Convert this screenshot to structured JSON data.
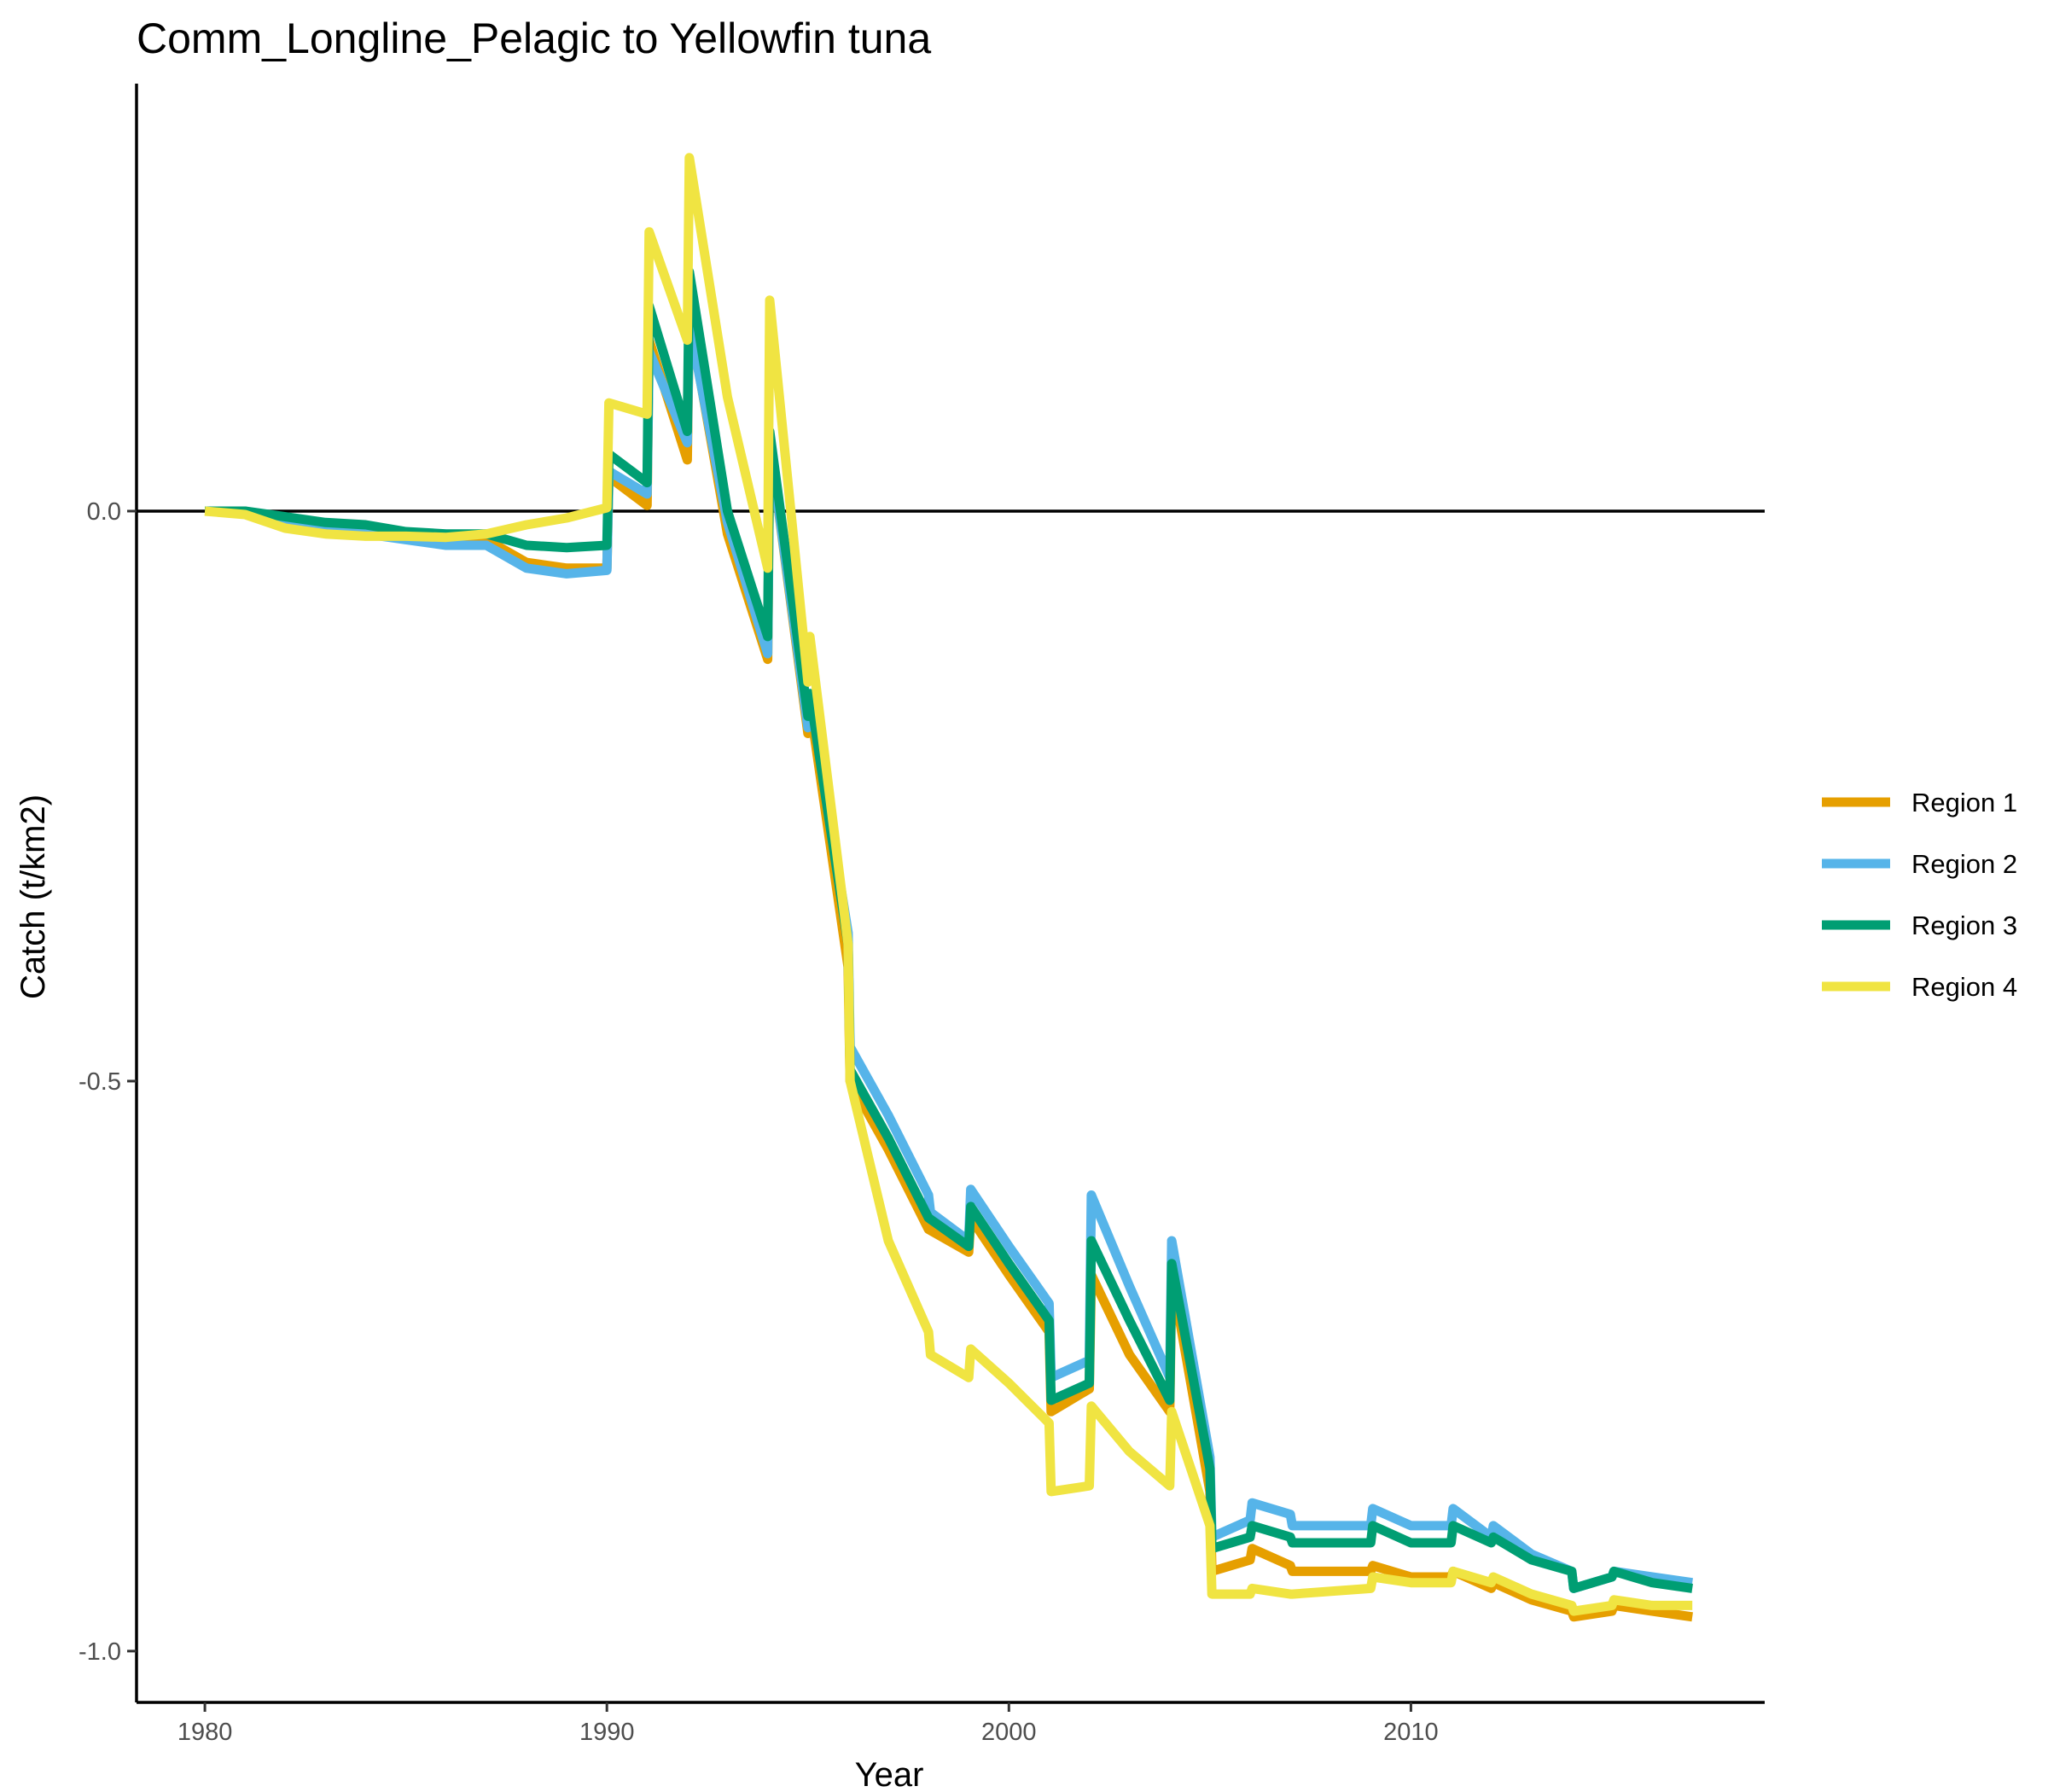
{
  "chart_data": {
    "type": "line",
    "title": "Comm_Longline_Pelagic to Yellowfin tuna",
    "xlabel": "Year",
    "ylabel": "Catch (t/km2)",
    "xlim": [
      1978.3,
      2018.8
    ],
    "ylim": [
      -1.045,
      0.375
    ],
    "x_ticks": [
      1980,
      1990,
      2000,
      2010
    ],
    "x_tick_labels": [
      "1980",
      "1990",
      "2000",
      "2010"
    ],
    "y_ticks": [
      0.0,
      -0.5,
      -1.0
    ],
    "y_tick_labels": [
      "0.0",
      "-0.5",
      "-1.0"
    ],
    "reference_line_y": 0,
    "grid": false,
    "legend_position": "right",
    "series": [
      {
        "name": "Region 1",
        "color": "#E69F00",
        "points": [
          [
            1980,
            0
          ],
          [
            1981,
            0
          ],
          [
            1982,
            -0.01
          ],
          [
            1983,
            -0.015
          ],
          [
            1984,
            -0.02
          ],
          [
            1985,
            -0.022
          ],
          [
            1986,
            -0.023
          ],
          [
            1987,
            -0.025
          ],
          [
            1988,
            -0.045
          ],
          [
            1989,
            -0.05
          ],
          [
            1990,
            -0.05
          ],
          [
            1990.05,
            0.03
          ],
          [
            1991,
            0.005
          ],
          [
            1991.05,
            0.15
          ],
          [
            1992,
            0.045
          ],
          [
            1992.05,
            0.17
          ],
          [
            1993,
            -0.02
          ],
          [
            1994,
            -0.13
          ],
          [
            1994.05,
            0.06
          ],
          [
            1995,
            -0.195
          ],
          [
            1995.05,
            -0.17
          ],
          [
            1996,
            -0.4
          ],
          [
            1996.05,
            -0.5
          ],
          [
            1997,
            -0.56
          ],
          [
            1998,
            -0.63
          ],
          [
            1999,
            -0.65
          ],
          [
            1999.05,
            -0.62
          ],
          [
            2000,
            -0.67
          ],
          [
            2001,
            -0.72
          ],
          [
            2001.05,
            -0.79
          ],
          [
            2002,
            -0.77
          ],
          [
            2002.05,
            -0.67
          ],
          [
            2003,
            -0.74
          ],
          [
            2004,
            -0.79
          ],
          [
            2004.05,
            -0.67
          ],
          [
            2005,
            -0.86
          ],
          [
            2005.05,
            -0.93
          ],
          [
            2006,
            -0.92
          ],
          [
            2006.05,
            -0.91
          ],
          [
            2007,
            -0.925
          ],
          [
            2007.05,
            -0.93
          ],
          [
            2009,
            -0.93
          ],
          [
            2009.05,
            -0.925
          ],
          [
            2010,
            -0.935
          ],
          [
            2011,
            -0.935
          ],
          [
            2011.05,
            -0.93
          ],
          [
            2012,
            -0.945
          ],
          [
            2012.05,
            -0.94
          ],
          [
            2013,
            -0.955
          ],
          [
            2014,
            -0.965
          ],
          [
            2014.05,
            -0.97
          ],
          [
            2015,
            -0.965
          ],
          [
            2015.05,
            -0.96
          ],
          [
            2016,
            -0.965
          ],
          [
            2017,
            -0.97
          ]
        ]
      },
      {
        "name": "Region 2",
        "color": "#56B4E9",
        "points": [
          [
            1980,
            0
          ],
          [
            1981,
            0
          ],
          [
            1982,
            -0.01
          ],
          [
            1983,
            -0.015
          ],
          [
            1984,
            -0.02
          ],
          [
            1985,
            -0.025
          ],
          [
            1986,
            -0.03
          ],
          [
            1987,
            -0.03
          ],
          [
            1988,
            -0.05
          ],
          [
            1989,
            -0.055
          ],
          [
            1990,
            -0.052
          ],
          [
            1990.05,
            0.035
          ],
          [
            1991,
            0.015
          ],
          [
            1991.05,
            0.14
          ],
          [
            1992,
            0.06
          ],
          [
            1992.05,
            0.165
          ],
          [
            1993,
            -0.01
          ],
          [
            1994,
            -0.125
          ],
          [
            1994.05,
            0.06
          ],
          [
            1995,
            -0.19
          ],
          [
            1995.05,
            -0.16
          ],
          [
            1996,
            -0.37
          ],
          [
            1996.05,
            -0.47
          ],
          [
            1997,
            -0.53
          ],
          [
            1998,
            -0.6
          ],
          [
            1998.05,
            -0.615
          ],
          [
            1999,
            -0.64
          ],
          [
            1999.05,
            -0.595
          ],
          [
            2000,
            -0.645
          ],
          [
            2001,
            -0.695
          ],
          [
            2001.05,
            -0.76
          ],
          [
            2002,
            -0.745
          ],
          [
            2002.05,
            -0.6
          ],
          [
            2003,
            -0.68
          ],
          [
            2004,
            -0.76
          ],
          [
            2004.05,
            -0.64
          ],
          [
            2005,
            -0.83
          ],
          [
            2005.05,
            -0.9
          ],
          [
            2006,
            -0.885
          ],
          [
            2006.05,
            -0.87
          ],
          [
            2007,
            -0.88
          ],
          [
            2007.05,
            -0.89
          ],
          [
            2009,
            -0.89
          ],
          [
            2009.05,
            -0.875
          ],
          [
            2010,
            -0.89
          ],
          [
            2011,
            -0.89
          ],
          [
            2011.05,
            -0.875
          ],
          [
            2012,
            -0.9
          ],
          [
            2012.05,
            -0.89
          ],
          [
            2013,
            -0.915
          ],
          [
            2014,
            -0.93
          ],
          [
            2014.05,
            -0.945
          ],
          [
            2015,
            -0.935
          ],
          [
            2015.05,
            -0.93
          ],
          [
            2016,
            -0.935
          ],
          [
            2017,
            -0.94
          ]
        ]
      },
      {
        "name": "Region 3",
        "color": "#009E73",
        "points": [
          [
            1980,
            0
          ],
          [
            1981,
            0
          ],
          [
            1982,
            -0.005
          ],
          [
            1983,
            -0.01
          ],
          [
            1984,
            -0.012
          ],
          [
            1985,
            -0.018
          ],
          [
            1986,
            -0.02
          ],
          [
            1987,
            -0.02
          ],
          [
            1988,
            -0.03
          ],
          [
            1989,
            -0.032
          ],
          [
            1990,
            -0.03
          ],
          [
            1990.05,
            0.05
          ],
          [
            1991,
            0.025
          ],
          [
            1991.05,
            0.18
          ],
          [
            1992,
            0.07
          ],
          [
            1992.05,
            0.21
          ],
          [
            1993,
            0.0
          ],
          [
            1994,
            -0.11
          ],
          [
            1994.05,
            0.07
          ],
          [
            1995,
            -0.18
          ],
          [
            1995.05,
            -0.16
          ],
          [
            1996,
            -0.38
          ],
          [
            1996.05,
            -0.49
          ],
          [
            1997,
            -0.55
          ],
          [
            1998,
            -0.62
          ],
          [
            1999,
            -0.645
          ],
          [
            1999.05,
            -0.61
          ],
          [
            2000,
            -0.66
          ],
          [
            2001,
            -0.71
          ],
          [
            2001.05,
            -0.78
          ],
          [
            2002,
            -0.765
          ],
          [
            2002.05,
            -0.64
          ],
          [
            2003,
            -0.71
          ],
          [
            2004,
            -0.78
          ],
          [
            2004.05,
            -0.66
          ],
          [
            2005,
            -0.84
          ],
          [
            2005.05,
            -0.91
          ],
          [
            2006,
            -0.9
          ],
          [
            2006.05,
            -0.89
          ],
          [
            2007,
            -0.9
          ],
          [
            2007.05,
            -0.905
          ],
          [
            2009,
            -0.905
          ],
          [
            2009.05,
            -0.89
          ],
          [
            2010,
            -0.905
          ],
          [
            2011,
            -0.905
          ],
          [
            2011.05,
            -0.89
          ],
          [
            2012,
            -0.905
          ],
          [
            2012.05,
            -0.9
          ],
          [
            2013,
            -0.92
          ],
          [
            2014,
            -0.93
          ],
          [
            2014.05,
            -0.945
          ],
          [
            2015,
            -0.935
          ],
          [
            2015.05,
            -0.93
          ],
          [
            2016,
            -0.94
          ],
          [
            2017,
            -0.945
          ]
        ]
      },
      {
        "name": "Region 4",
        "color": "#F0E442",
        "points": [
          [
            1980,
            0
          ],
          [
            1981,
            -0.003
          ],
          [
            1982,
            -0.015
          ],
          [
            1983,
            -0.02
          ],
          [
            1984,
            -0.022
          ],
          [
            1985,
            -0.022
          ],
          [
            1986,
            -0.023
          ],
          [
            1987,
            -0.02
          ],
          [
            1988,
            -0.012
          ],
          [
            1989,
            -0.006
          ],
          [
            1990,
            0.003
          ],
          [
            1990.05,
            0.095
          ],
          [
            1991,
            0.085
          ],
          [
            1991.05,
            0.245
          ],
          [
            1992,
            0.15
          ],
          [
            1992.05,
            0.31
          ],
          [
            1993,
            0.1
          ],
          [
            1994,
            -0.05
          ],
          [
            1994.05,
            0.185
          ],
          [
            1995,
            -0.15
          ],
          [
            1995.05,
            -0.11
          ],
          [
            1996,
            -0.38
          ],
          [
            1996.05,
            -0.5
          ],
          [
            1997,
            -0.64
          ],
          [
            1998,
            -0.72
          ],
          [
            1998.05,
            -0.74
          ],
          [
            1999,
            -0.76
          ],
          [
            1999.05,
            -0.735
          ],
          [
            2000,
            -0.765
          ],
          [
            2001,
            -0.8
          ],
          [
            2001.05,
            -0.86
          ],
          [
            2002,
            -0.855
          ],
          [
            2002.05,
            -0.785
          ],
          [
            2003,
            -0.825
          ],
          [
            2004,
            -0.855
          ],
          [
            2004.05,
            -0.79
          ],
          [
            2005,
            -0.89
          ],
          [
            2005.05,
            -0.95
          ],
          [
            2006,
            -0.95
          ],
          [
            2006.05,
            -0.945
          ],
          [
            2007,
            -0.95
          ],
          [
            2007.05,
            -0.95
          ],
          [
            2009,
            -0.945
          ],
          [
            2009.05,
            -0.935
          ],
          [
            2010,
            -0.94
          ],
          [
            2011,
            -0.94
          ],
          [
            2011.05,
            -0.93
          ],
          [
            2012,
            -0.94
          ],
          [
            2012.05,
            -0.935
          ],
          [
            2013,
            -0.95
          ],
          [
            2014,
            -0.96
          ],
          [
            2014.05,
            -0.965
          ],
          [
            2015,
            -0.96
          ],
          [
            2015.05,
            -0.955
          ],
          [
            2016,
            -0.96
          ],
          [
            2017,
            -0.96
          ]
        ]
      }
    ]
  }
}
